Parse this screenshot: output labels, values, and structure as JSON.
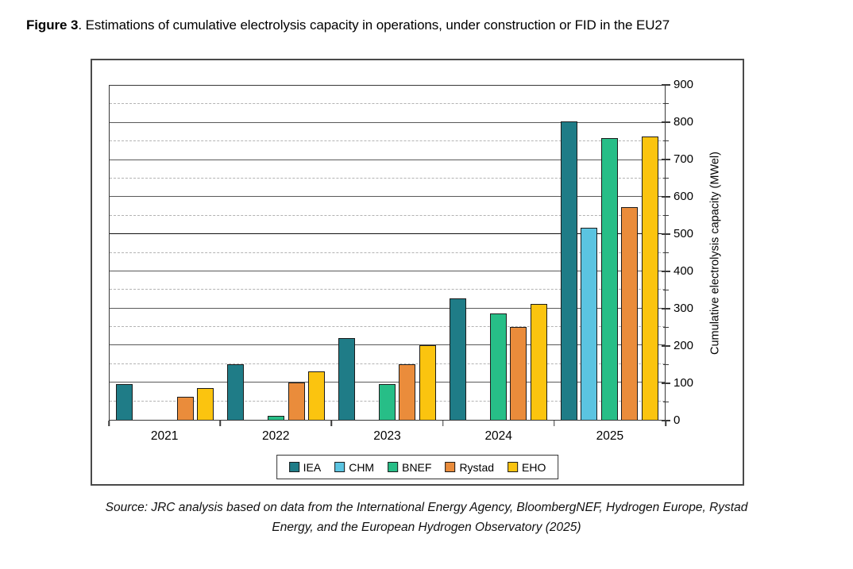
{
  "figure_caption": {
    "label": "Figure 3",
    "text": ". Estimations of cumulative electrolysis capacity in operations, under construction or FID in the EU27"
  },
  "source": {
    "line1": "Source: JRC analysis based on data from the International Energy Agency, BloombergNEF, Hydrogen Europe, Rystad",
    "line2": "Energy, and the European Hydrogen Observatory (2025)"
  },
  "chart_data": {
    "type": "bar",
    "title": "",
    "categories": [
      "2021",
      "2022",
      "2023",
      "2024",
      "2025"
    ],
    "series": [
      {
        "name": "IEA",
        "color": "#1F7C87",
        "values": [
          95,
          150,
          220,
          325,
          800
        ]
      },
      {
        "name": "CHM",
        "color": "#5BC4E1",
        "values": [
          null,
          null,
          null,
          null,
          515
        ]
      },
      {
        "name": "BNEF",
        "color": "#27BE87",
        "values": [
          null,
          10,
          95,
          285,
          755
        ]
      },
      {
        "name": "Rystad",
        "color": "#EA8C3B",
        "values": [
          62,
          100,
          150,
          250,
          570
        ]
      },
      {
        "name": "EHO",
        "color": "#FBC40F",
        "values": [
          85,
          130,
          200,
          310,
          760
        ]
      }
    ],
    "xlabel": "",
    "ylabel": "Cumulative electrolysis capacity (MWel)",
    "ylim": [
      0,
      900
    ],
    "yticks": [
      0,
      100,
      200,
      300,
      400,
      500,
      600,
      700,
      800,
      900
    ],
    "ytick_major": 100,
    "ytick_minor": 50,
    "yaxis_side": "right",
    "legend_position": "bottom-inside",
    "grid": {
      "major_color": "#595959",
      "minor_color": "#b3b3b3",
      "emphasized_value": 500,
      "emphasized_color": "#111111"
    },
    "bar_border_color": "#1c1c1c"
  }
}
